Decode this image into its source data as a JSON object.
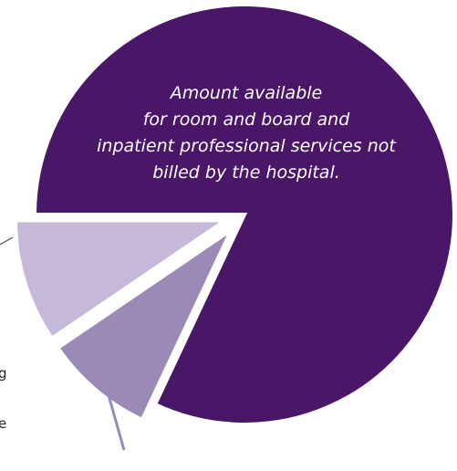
{
  "chart_data": {
    "type": "pie",
    "slices": [
      {
        "key": "room_board",
        "value": 82,
        "color": "#4a1667",
        "exploded": false
      },
      {
        "key": "slice_b",
        "value": 8.5,
        "color": "#9b8ab8",
        "exploded": true
      },
      {
        "key": "slice_c",
        "value": 9.5,
        "color": "#c5b8d9",
        "exploded": true
      }
    ],
    "inside_label_lines": [
      "Amount available",
      "for room and board and",
      "inpatient professional services not",
      "billed by the hospital."
    ],
    "edge_text": [
      "g",
      "e"
    ],
    "colors": {
      "line": "#9b8ab8",
      "background": "#ffffff"
    }
  }
}
